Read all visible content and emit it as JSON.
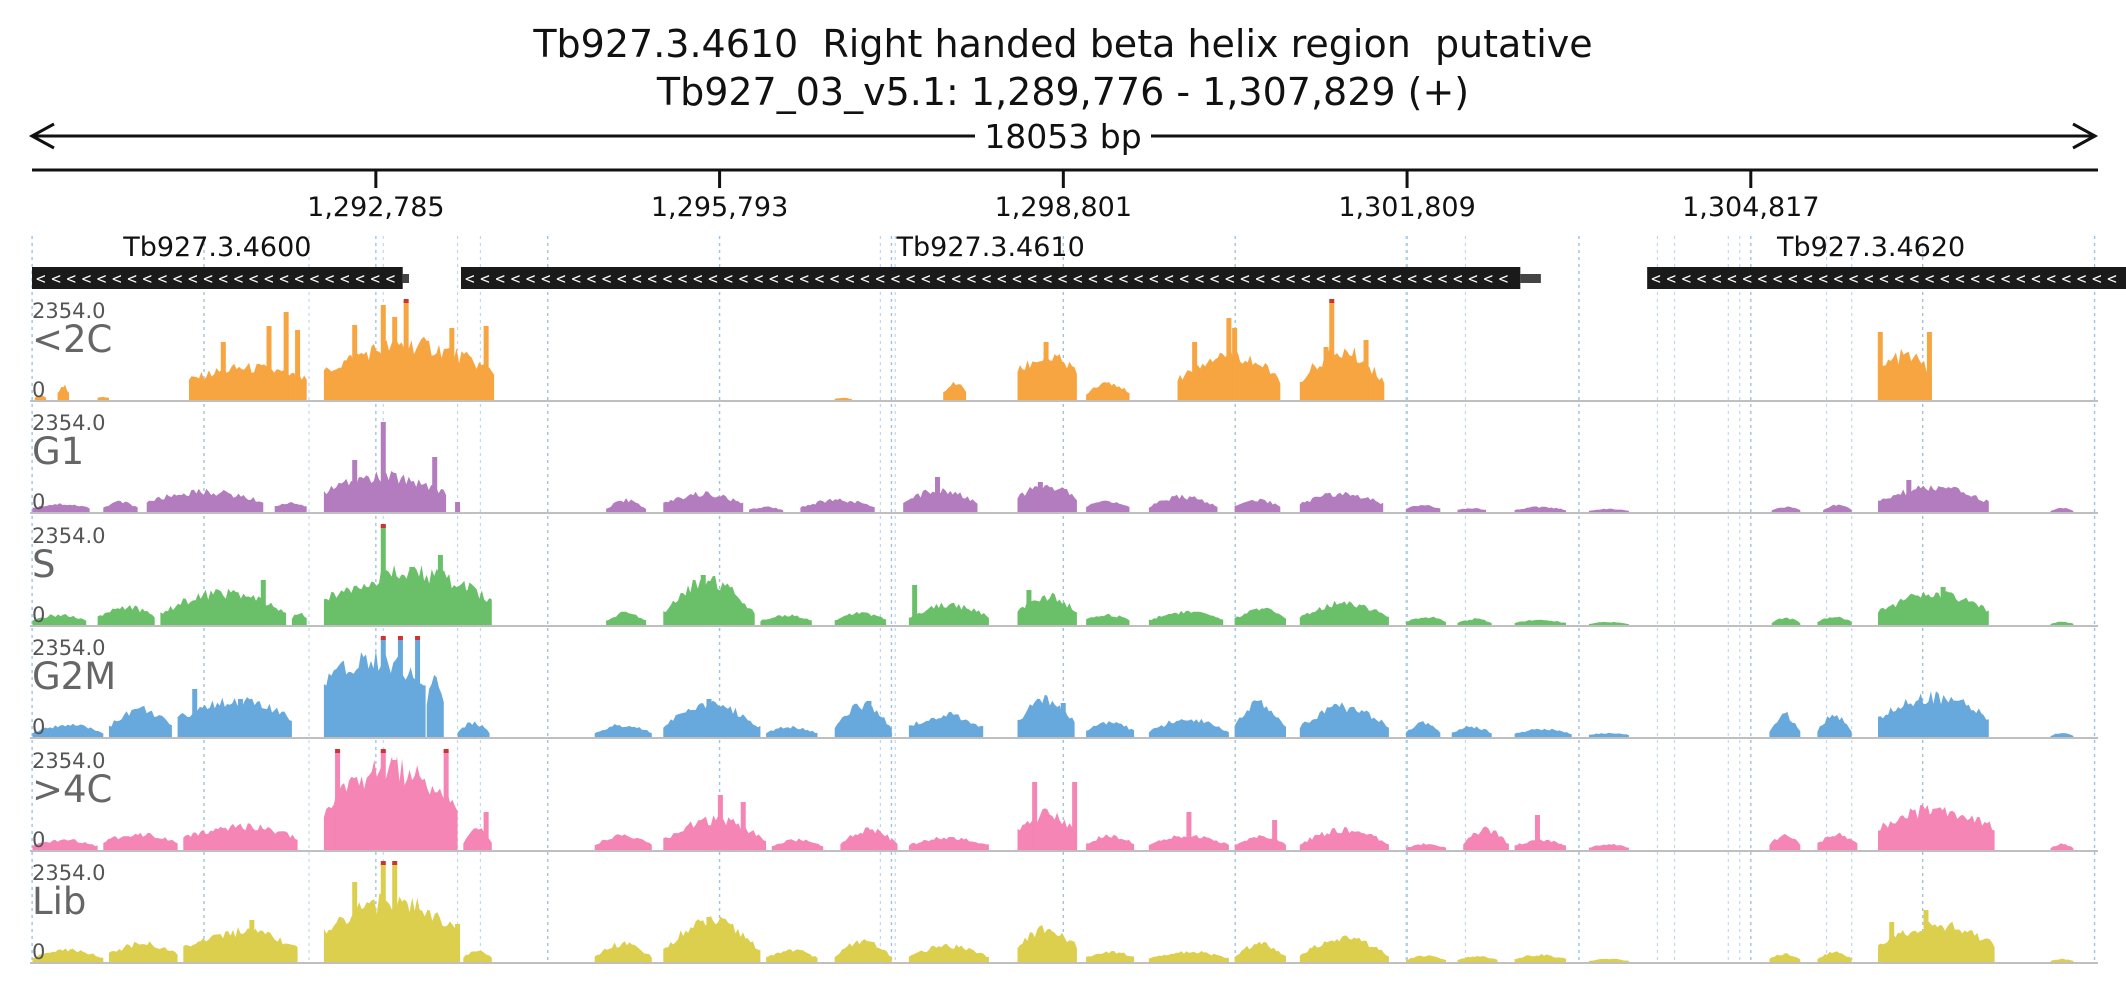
{
  "header": {
    "title_line1": "Tb927.3.4610  Right handed beta helix region  putative",
    "title_line2": "Tb927_03_v5.1: 1,289,776 - 1,307,829 (+)",
    "span_label": "18053 bp"
  },
  "chart_data": {
    "type": "area",
    "region": {
      "chrom": "Tb927_03_v5.1",
      "start": 1289776,
      "end": 1307829,
      "strand": "+",
      "length_bp": 18053
    },
    "axis_ticks": [
      {
        "pos": 1292785,
        "label": "1,292,785"
      },
      {
        "pos": 1295793,
        "label": "1,295,793"
      },
      {
        "pos": 1298801,
        "label": "1,298,801"
      },
      {
        "pos": 1301809,
        "label": "1,301,809"
      },
      {
        "pos": 1304817,
        "label": "1,304,817"
      }
    ],
    "genes": [
      {
        "name": "Tb927.3.4600",
        "start": 1289776,
        "end": 1293020,
        "strand": "-",
        "utr_end": 1293075
      },
      {
        "name": "Tb927.3.4610",
        "start": 1293530,
        "end": 1302800,
        "strand": "-",
        "utr_end": 1302980
      },
      {
        "name": "Tb927.3.4620",
        "start": 1303910,
        "end": 1308150,
        "strand": "-",
        "utr_end": 1308300
      }
    ],
    "ymax_label": "2354.0",
    "ymin_label": "0",
    "ylim": [
      0,
      2354
    ],
    "segments": [
      {
        "start": 1292200,
        "end": 1292850
      },
      {
        "start": 1293500,
        "end": 1293700
      },
      {
        "start": 1297200,
        "end": 1297330
      },
      {
        "start": 1301800,
        "end": 1302320
      },
      {
        "start": 1304000,
        "end": 1304150
      },
      {
        "start": 1304620,
        "end": 1304720
      },
      {
        "start": 1305480,
        "end": 1305700
      }
    ],
    "series": [
      {
        "name": "<2C",
        "color": "#f7a541",
        "profile": [
          [
            1289800,
            1289900,
            0.02,
            0.05
          ],
          [
            1290000,
            1290100,
            0.08,
            0.14
          ],
          [
            1290350,
            1290450,
            0.02,
            0.03
          ],
          [
            1291150,
            1292180,
            0.2,
            0.32
          ],
          [
            1292330,
            1293820,
            0.28,
            0.55
          ],
          [
            1296800,
            1296950,
            0.01,
            0.02
          ],
          [
            1297750,
            1297950,
            0.08,
            0.16
          ],
          [
            1298400,
            1298920,
            0.28,
            0.42
          ],
          [
            1299000,
            1299380,
            0.06,
            0.18
          ],
          [
            1299800,
            1300700,
            0.2,
            0.46
          ],
          [
            1300870,
            1301610,
            0.18,
            0.48
          ],
          [
            1305930,
            1306400,
            0.28,
            0.44
          ]
        ],
        "spikes": [
          [
            1291450,
            0.58
          ],
          [
            1291850,
            0.74
          ],
          [
            1292000,
            0.88
          ],
          [
            1292100,
            0.7
          ],
          [
            1292600,
            0.75
          ],
          [
            1292850,
            0.95
          ],
          [
            1292950,
            0.83
          ],
          [
            1293050,
            0.98
          ],
          [
            1293450,
            0.72
          ],
          [
            1293750,
            0.74
          ],
          [
            1298650,
            0.58
          ],
          [
            1299950,
            0.58
          ],
          [
            1300250,
            0.82
          ],
          [
            1300300,
            0.72
          ],
          [
            1301100,
            0.53
          ],
          [
            1301150,
            0.98
          ],
          [
            1301450,
            0.6
          ],
          [
            1305950,
            0.68
          ],
          [
            1306380,
            0.68
          ]
        ]
      },
      {
        "name": "G1",
        "color": "#b27cbf",
        "profile": [
          [
            1289780,
            1290280,
            0.04,
            0.08
          ],
          [
            1290400,
            1290700,
            0.04,
            0.1
          ],
          [
            1290780,
            1291800,
            0.1,
            0.2
          ],
          [
            1291900,
            1292180,
            0.05,
            0.09
          ],
          [
            1292330,
            1293400,
            0.2,
            0.35
          ],
          [
            1294800,
            1295150,
            0.03,
            0.12
          ],
          [
            1295300,
            1296000,
            0.08,
            0.18
          ],
          [
            1296050,
            1296350,
            0.02,
            0.05
          ],
          [
            1296500,
            1297150,
            0.05,
            0.12
          ],
          [
            1297400,
            1298050,
            0.08,
            0.22
          ],
          [
            1298400,
            1298920,
            0.14,
            0.26
          ],
          [
            1299000,
            1299380,
            0.05,
            0.11
          ],
          [
            1299550,
            1300150,
            0.05,
            0.15
          ],
          [
            1300300,
            1300700,
            0.06,
            0.12
          ],
          [
            1300870,
            1301600,
            0.08,
            0.18
          ],
          [
            1301800,
            1302100,
            0.03,
            0.07
          ],
          [
            1302250,
            1302500,
            0.02,
            0.04
          ],
          [
            1302750,
            1303200,
            0.02,
            0.05
          ],
          [
            1303400,
            1303750,
            0.01,
            0.03
          ],
          [
            1305000,
            1305250,
            0.02,
            0.05
          ],
          [
            1305450,
            1305700,
            0.02,
            0.07
          ],
          [
            1305930,
            1306900,
            0.1,
            0.24
          ],
          [
            1307440,
            1307640,
            0.01,
            0.04
          ]
        ],
        "spikes": [
          [
            1292600,
            0.52
          ],
          [
            1292850,
            0.9
          ],
          [
            1293300,
            0.55
          ],
          [
            1293500,
            0.1
          ],
          [
            1297700,
            0.35
          ],
          [
            1298600,
            0.3
          ],
          [
            1306200,
            0.32
          ]
        ]
      },
      {
        "name": "S",
        "color": "#6abf69",
        "profile": [
          [
            1289780,
            1290250,
            0.04,
            0.1
          ],
          [
            1290350,
            1290850,
            0.08,
            0.18
          ],
          [
            1290900,
            1292000,
            0.12,
            0.32
          ],
          [
            1292050,
            1292180,
            0.06,
            0.12
          ],
          [
            1292330,
            1293800,
            0.25,
            0.52
          ],
          [
            1294800,
            1295150,
            0.04,
            0.12
          ],
          [
            1295300,
            1296100,
            0.12,
            0.44
          ],
          [
            1296150,
            1296600,
            0.04,
            0.1
          ],
          [
            1296800,
            1297250,
            0.05,
            0.12
          ],
          [
            1297450,
            1298150,
            0.08,
            0.2
          ],
          [
            1298400,
            1298920,
            0.14,
            0.28
          ],
          [
            1299000,
            1299380,
            0.05,
            0.1
          ],
          [
            1299550,
            1300200,
            0.05,
            0.13
          ],
          [
            1300300,
            1300750,
            0.06,
            0.16
          ],
          [
            1300870,
            1301650,
            0.08,
            0.22
          ],
          [
            1301800,
            1302150,
            0.03,
            0.08
          ],
          [
            1302250,
            1302550,
            0.02,
            0.06
          ],
          [
            1302750,
            1303200,
            0.02,
            0.05
          ],
          [
            1303400,
            1303750,
            0.01,
            0.03
          ],
          [
            1305000,
            1305250,
            0.02,
            0.07
          ],
          [
            1305400,
            1305700,
            0.03,
            0.09
          ],
          [
            1305930,
            1306900,
            0.14,
            0.3
          ],
          [
            1307440,
            1307640,
            0.01,
            0.03
          ]
        ],
        "spikes": [
          [
            1291800,
            0.45
          ],
          [
            1292850,
            1.0
          ],
          [
            1293100,
            0.58
          ],
          [
            1293350,
            0.7
          ],
          [
            1293600,
            0.35
          ],
          [
            1295650,
            0.5
          ],
          [
            1297500,
            0.4
          ],
          [
            1298500,
            0.35
          ],
          [
            1306500,
            0.38
          ]
        ]
      },
      {
        "name": "G2M",
        "color": "#67a9dc",
        "profile": [
          [
            1289780,
            1290400,
            0.04,
            0.12
          ],
          [
            1290450,
            1291000,
            0.1,
            0.28
          ],
          [
            1291050,
            1292050,
            0.18,
            0.36
          ],
          [
            1292330,
            1293220,
            0.5,
            0.8
          ],
          [
            1293230,
            1293380,
            0.3,
            0.6
          ],
          [
            1293500,
            1293780,
            0.04,
            0.14
          ],
          [
            1294700,
            1295200,
            0.04,
            0.12
          ],
          [
            1295300,
            1296150,
            0.1,
            0.32
          ],
          [
            1296200,
            1296650,
            0.04,
            0.1
          ],
          [
            1296800,
            1297300,
            0.08,
            0.32
          ],
          [
            1297450,
            1298100,
            0.1,
            0.22
          ],
          [
            1298400,
            1298900,
            0.15,
            0.36
          ],
          [
            1299000,
            1299420,
            0.06,
            0.14
          ],
          [
            1299550,
            1300250,
            0.05,
            0.18
          ],
          [
            1300300,
            1300750,
            0.1,
            0.34
          ],
          [
            1300870,
            1301650,
            0.1,
            0.3
          ],
          [
            1301800,
            1302100,
            0.04,
            0.14
          ],
          [
            1302200,
            1302550,
            0.04,
            0.1
          ],
          [
            1302750,
            1303250,
            0.03,
            0.08
          ],
          [
            1303400,
            1303750,
            0.02,
            0.04
          ],
          [
            1304980,
            1305250,
            0.06,
            0.22
          ],
          [
            1305400,
            1305700,
            0.06,
            0.22
          ],
          [
            1305930,
            1306900,
            0.18,
            0.4
          ],
          [
            1307440,
            1307640,
            0.01,
            0.04
          ]
        ],
        "spikes": [
          [
            1291200,
            0.48
          ],
          [
            1291600,
            0.38
          ],
          [
            1292850,
            0.98
          ],
          [
            1293000,
            0.98
          ],
          [
            1293150,
            0.97
          ],
          [
            1295700,
            0.38
          ],
          [
            1297100,
            0.36
          ],
          [
            1298800,
            0.34
          ],
          [
            1306200,
            0.32
          ]
        ]
      },
      {
        "name": ">4C",
        "color": "#f485b4",
        "profile": [
          [
            1289780,
            1290350,
            0.04,
            0.1
          ],
          [
            1290400,
            1291050,
            0.08,
            0.16
          ],
          [
            1291100,
            1292100,
            0.12,
            0.24
          ],
          [
            1292330,
            1293500,
            0.4,
            0.8
          ],
          [
            1293550,
            1293800,
            0.06,
            0.22
          ],
          [
            1294700,
            1295200,
            0.05,
            0.14
          ],
          [
            1295300,
            1296200,
            0.1,
            0.3
          ],
          [
            1296250,
            1296700,
            0.04,
            0.1
          ],
          [
            1296850,
            1297350,
            0.06,
            0.2
          ],
          [
            1297450,
            1298150,
            0.05,
            0.12
          ],
          [
            1298400,
            1298920,
            0.18,
            0.36
          ],
          [
            1299000,
            1299420,
            0.06,
            0.14
          ],
          [
            1299550,
            1300250,
            0.05,
            0.14
          ],
          [
            1300300,
            1300750,
            0.05,
            0.14
          ],
          [
            1300870,
            1301650,
            0.06,
            0.2
          ],
          [
            1301800,
            1302150,
            0.02,
            0.06
          ],
          [
            1302300,
            1302700,
            0.06,
            0.2
          ],
          [
            1302750,
            1303200,
            0.04,
            0.1
          ],
          [
            1303400,
            1303750,
            0.02,
            0.06
          ],
          [
            1304980,
            1305250,
            0.05,
            0.14
          ],
          [
            1305400,
            1305750,
            0.06,
            0.16
          ],
          [
            1305930,
            1306950,
            0.22,
            0.4
          ],
          [
            1307440,
            1307640,
            0.02,
            0.06
          ]
        ],
        "spikes": [
          [
            1292450,
            0.98
          ],
          [
            1292850,
            0.99
          ],
          [
            1292950,
            0.9
          ],
          [
            1293400,
            0.99
          ],
          [
            1293750,
            0.38
          ],
          [
            1295800,
            0.55
          ],
          [
            1296000,
            0.48
          ],
          [
            1298550,
            0.68
          ],
          [
            1298900,
            0.68
          ],
          [
            1299900,
            0.38
          ],
          [
            1300650,
            0.3
          ],
          [
            1302950,
            0.35
          ],
          [
            1306400,
            0.36
          ]
        ]
      },
      {
        "name": "Lib",
        "color": "#dccf4e",
        "profile": [
          [
            1289780,
            1290400,
            0.04,
            0.12
          ],
          [
            1290450,
            1291050,
            0.08,
            0.18
          ],
          [
            1291100,
            1292100,
            0.14,
            0.3
          ],
          [
            1292330,
            1293500,
            0.3,
            0.6
          ],
          [
            1293550,
            1293800,
            0.04,
            0.12
          ],
          [
            1294700,
            1295200,
            0.05,
            0.18
          ],
          [
            1295300,
            1296150,
            0.12,
            0.4
          ],
          [
            1296200,
            1296650,
            0.04,
            0.12
          ],
          [
            1296800,
            1297300,
            0.05,
            0.2
          ],
          [
            1297450,
            1298150,
            0.05,
            0.16
          ],
          [
            1298400,
            1298920,
            0.15,
            0.32
          ],
          [
            1299000,
            1299420,
            0.05,
            0.1
          ],
          [
            1299550,
            1300250,
            0.04,
            0.1
          ],
          [
            1300300,
            1300750,
            0.05,
            0.18
          ],
          [
            1300870,
            1301650,
            0.06,
            0.24
          ],
          [
            1301800,
            1302150,
            0.02,
            0.06
          ],
          [
            1302250,
            1302600,
            0.02,
            0.06
          ],
          [
            1302750,
            1303200,
            0.03,
            0.07
          ],
          [
            1303400,
            1303750,
            0.01,
            0.03
          ],
          [
            1304980,
            1305250,
            0.03,
            0.08
          ],
          [
            1305400,
            1305700,
            0.03,
            0.1
          ],
          [
            1305930,
            1306950,
            0.18,
            0.36
          ],
          [
            1307440,
            1307640,
            0.01,
            0.03
          ]
        ],
        "spikes": [
          [
            1291700,
            0.42
          ],
          [
            1292600,
            0.8
          ],
          [
            1292850,
            0.98
          ],
          [
            1292950,
            0.98
          ],
          [
            1293500,
            0.38
          ],
          [
            1295700,
            0.45
          ],
          [
            1306050,
            0.4
          ],
          [
            1306350,
            0.52
          ]
        ]
      }
    ]
  }
}
